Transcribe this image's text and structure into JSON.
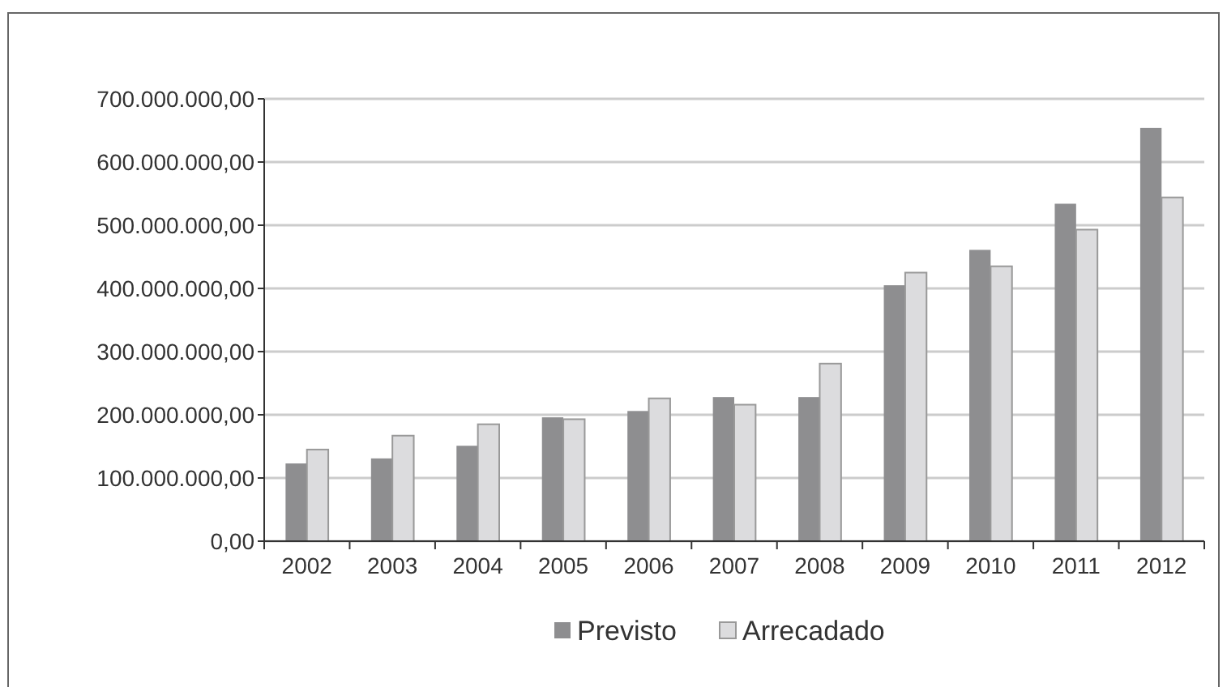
{
  "chart_data": {
    "type": "bar",
    "categories": [
      "2002",
      "2003",
      "2004",
      "2005",
      "2006",
      "2007",
      "2008",
      "2009",
      "2010",
      "2011",
      "2012"
    ],
    "series": [
      {
        "name": "Previsto",
        "color": "#8e8e90",
        "values": [
          123000000,
          131000000,
          151000000,
          196000000,
          206000000,
          228000000,
          228000000,
          405000000,
          461000000,
          534000000,
          654000000
        ]
      },
      {
        "name": "Arrecadado",
        "color": "#dcdcde",
        "values": [
          145000000,
          167000000,
          185000000,
          193000000,
          226000000,
          216000000,
          281000000,
          425000000,
          435000000,
          493000000,
          544000000
        ]
      }
    ],
    "ylim": [
      0,
      700000000
    ],
    "yticks": [
      {
        "value": 0,
        "label": "0,00"
      },
      {
        "value": 100000000,
        "label": "100.000.000,00"
      },
      {
        "value": 200000000,
        "label": "200.000.000,00"
      },
      {
        "value": 300000000,
        "label": "300.000.000,00"
      },
      {
        "value": 400000000,
        "label": "400.000.000,00"
      },
      {
        "value": 500000000,
        "label": "500.000.000,00"
      },
      {
        "value": 600000000,
        "label": "600.000.000,00"
      },
      {
        "value": 700000000,
        "label": "700.000.000,00"
      }
    ],
    "grid": "y",
    "legend": "bottom"
  }
}
